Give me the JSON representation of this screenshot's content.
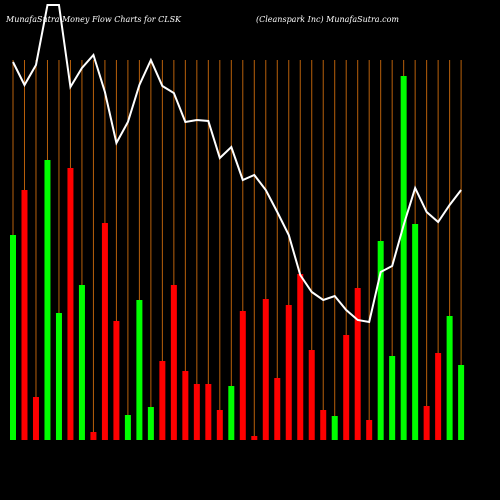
{
  "chart_data": {
    "type": "bar",
    "title": "MunafaSutra  Money Flow  Charts for CLSK",
    "subtitle": "(Cleanspark Inc) MunafaSutra.com",
    "ylim": [
      0,
      440
    ],
    "grid_color": "#b8600b",
    "series": [
      {
        "type": "bar",
        "values": [
          205,
          250,
          43,
          280,
          127,
          272,
          155,
          8,
          217,
          119,
          25,
          140,
          33,
          79,
          155,
          69,
          56,
          56,
          30,
          54,
          129,
          4,
          141,
          62,
          135,
          166,
          90,
          30,
          24,
          105,
          152,
          20,
          199,
          84,
          364,
          216,
          34,
          87,
          124,
          75
        ],
        "colors": [
          "#00ff00",
          "#ff0000",
          "#ff0000",
          "#00ff00",
          "#00ff00",
          "#ff0000",
          "#00ff00",
          "#ff0000",
          "#ff0000",
          "#ff0000",
          "#00ff00",
          "#00ff00",
          "#00ff00",
          "#ff0000",
          "#ff0000",
          "#ff0000",
          "#ff0000",
          "#ff0000",
          "#ff0000",
          "#00ff00",
          "#ff0000",
          "#ff0000",
          "#ff0000",
          "#ff0000",
          "#ff0000",
          "#ff0000",
          "#ff0000",
          "#ff0000",
          "#00ff00",
          "#ff0000",
          "#ff0000",
          "#ff0000",
          "#00ff00",
          "#00ff00",
          "#00ff00",
          "#00ff00",
          "#ff0000",
          "#ff0000",
          "#00ff00",
          "#00ff00"
        ]
      },
      {
        "type": "line",
        "color": "#ffffff",
        "values": [
          378,
          355,
          375,
          435,
          435,
          353,
          372,
          385,
          348,
          297,
          318,
          355,
          380,
          354,
          347,
          318,
          320,
          319,
          282,
          293,
          260,
          265,
          250,
          228,
          205,
          165,
          148,
          140,
          144,
          130,
          120,
          118,
          168,
          174,
          215,
          252,
          228,
          218,
          235,
          250
        ]
      }
    ]
  }
}
